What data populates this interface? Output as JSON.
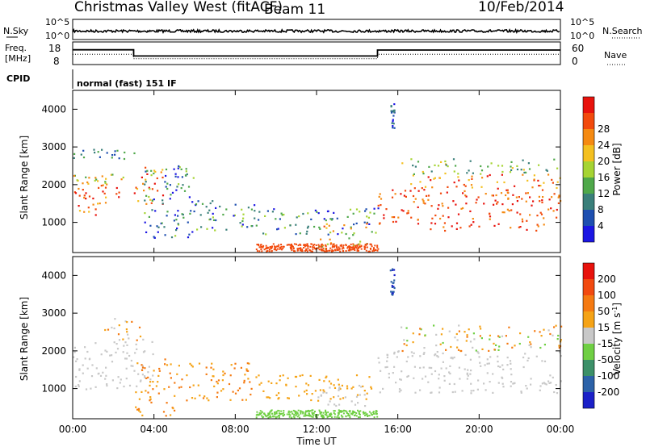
{
  "header": {
    "radar": "Christmas Valley West (fitACF)",
    "beam": "Beam 11",
    "date": "10/Feb/2014"
  },
  "top_panel": {
    "nsky_label": "N.Sky",
    "nsky_ticks": [
      "10^5",
      "10^0"
    ],
    "nsearch_label": "N.Search",
    "nsearch_ticks": [
      "10^5",
      "10^0"
    ],
    "freq_label": "Freq.",
    "freq_unit": "[MHz]",
    "freq_ticks": [
      "18",
      "8"
    ],
    "nave_label": "Nave",
    "nave_ticks": [
      "60",
      "0"
    ],
    "cpid_label": "CPID",
    "cpid_value": "normal (fast) 151 IF"
  },
  "chart_data": [
    {
      "type": "line",
      "name": "noise-freq-panel",
      "x_range_hours": [
        0,
        24
      ],
      "freq_mhz": [
        {
          "x": [
            0,
            3.0
          ],
          "y": 15.7
        },
        {
          "x": [
            3.0,
            15.0
          ],
          "y": 10.9
        },
        {
          "x": [
            15.0,
            24
          ],
          "y": 15.5
        }
      ],
      "nave": [
        {
          "x": [
            0,
            3.0
          ],
          "y": 35
        },
        {
          "x": [
            3.0,
            15.0
          ],
          "y": 20
        },
        {
          "x": [
            15.0,
            24
          ],
          "y": 35
        }
      ]
    },
    {
      "type": "heatmap",
      "name": "power",
      "ylabel": "Slant Range [km]",
      "yticks": [
        "1000",
        "2000",
        "3000",
        "4000"
      ],
      "yrange": [
        200,
        4500
      ],
      "colorbar": {
        "label": "Power [dB]",
        "ticks": [
          "4",
          "8",
          "12",
          "16",
          "20",
          "24",
          "28"
        ],
        "colors": [
          "#1b16e3",
          "#1e4fb0",
          "#3a7f7a",
          "#4fa84a",
          "#a6d433",
          "#f4c020",
          "#f58a12",
          "#f24a0c",
          "#e8120c"
        ]
      },
      "regions": [
        {
          "t": [
            0.0,
            2.5
          ],
          "r": [
            1200,
            2050
          ],
          "c": [
            5,
            8
          ]
        },
        {
          "t": [
            0.0,
            2.5
          ],
          "r": [
            2050,
            2300
          ],
          "c": [
            3,
            6
          ]
        },
        {
          "t": [
            0.0,
            3.0
          ],
          "r": [
            2700,
            2950
          ],
          "c": [
            1,
            3
          ]
        },
        {
          "t": [
            3.0,
            4.5
          ],
          "r": [
            1500,
            2500
          ],
          "c": [
            5,
            8
          ]
        },
        {
          "t": [
            3.5,
            6.0
          ],
          "r": [
            600,
            2550
          ],
          "c": [
            0,
            4
          ]
        },
        {
          "t": [
            5.0,
            9.0
          ],
          "r": [
            800,
            1600
          ],
          "c": [
            0,
            4
          ]
        },
        {
          "t": [
            9.0,
            15.0
          ],
          "r": [
            700,
            1400
          ],
          "c": [
            0,
            4
          ]
        },
        {
          "t": [
            12.0,
            14.5
          ],
          "r": [
            300,
            1000
          ],
          "c": [
            3,
            7
          ]
        },
        {
          "t": [
            15.0,
            24.0
          ],
          "r": [
            800,
            1900
          ],
          "c": [
            6,
            8
          ]
        },
        {
          "t": [
            16.5,
            24.0
          ],
          "r": [
            1900,
            2300
          ],
          "c": [
            5,
            8
          ]
        },
        {
          "t": [
            16.0,
            24.0
          ],
          "r": [
            2300,
            2700
          ],
          "c": [
            2,
            5
          ]
        },
        {
          "t": [
            15.6,
            15.8
          ],
          "r": [
            3500,
            4200
          ],
          "c": [
            0,
            2
          ]
        }
      ]
    },
    {
      "type": "heatmap",
      "name": "velocity",
      "ylabel": "Slant Range [km]",
      "yticks": [
        "1000",
        "2000",
        "3000",
        "4000"
      ],
      "yrange": [
        200,
        4500
      ],
      "colorbar": {
        "label": "Velocity [m s^-1]",
        "ticks": [
          "200",
          "100",
          "50",
          "15",
          "-15",
          "-50",
          "-100",
          "-200"
        ],
        "colors": [
          "#1b20c8",
          "#2c62a8",
          "#3c9068",
          "#6fcf43",
          "#c8c8c8",
          "#f5a316",
          "#f57a12",
          "#f24a10",
          "#e8120c"
        ]
      },
      "regions": [
        {
          "t": [
            0.0,
            4.0
          ],
          "r": [
            1000,
            2300
          ],
          "c": [
            4,
            4
          ]
        },
        {
          "t": [
            1.5,
            3.5
          ],
          "r": [
            2300,
            2900
          ],
          "c": [
            4,
            6
          ]
        },
        {
          "t": [
            3.0,
            5.0
          ],
          "r": [
            300,
            1800
          ],
          "c": [
            5,
            6
          ]
        },
        {
          "t": [
            5.0,
            9.0
          ],
          "r": [
            700,
            1700
          ],
          "c": [
            5,
            6
          ]
        },
        {
          "t": [
            9.0,
            15.0
          ],
          "r": [
            700,
            1400
          ],
          "c": [
            5,
            5
          ]
        },
        {
          "t": [
            12.0,
            14.5
          ],
          "r": [
            500,
            1100
          ],
          "c": [
            4,
            4
          ]
        },
        {
          "t": [
            15.0,
            24.0
          ],
          "r": [
            900,
            2000
          ],
          "c": [
            4,
            4
          ]
        },
        {
          "t": [
            16.0,
            24.0
          ],
          "r": [
            2000,
            2700
          ],
          "c": [
            3,
            6
          ]
        },
        {
          "t": [
            15.6,
            15.8
          ],
          "r": [
            3500,
            4200
          ],
          "c": [
            0,
            1
          ]
        }
      ]
    }
  ],
  "xaxis": {
    "label": "Time UT",
    "ticks": [
      "00:00",
      "04:00",
      "08:00",
      "12:00",
      "16:00",
      "20:00",
      "00:00"
    ]
  }
}
